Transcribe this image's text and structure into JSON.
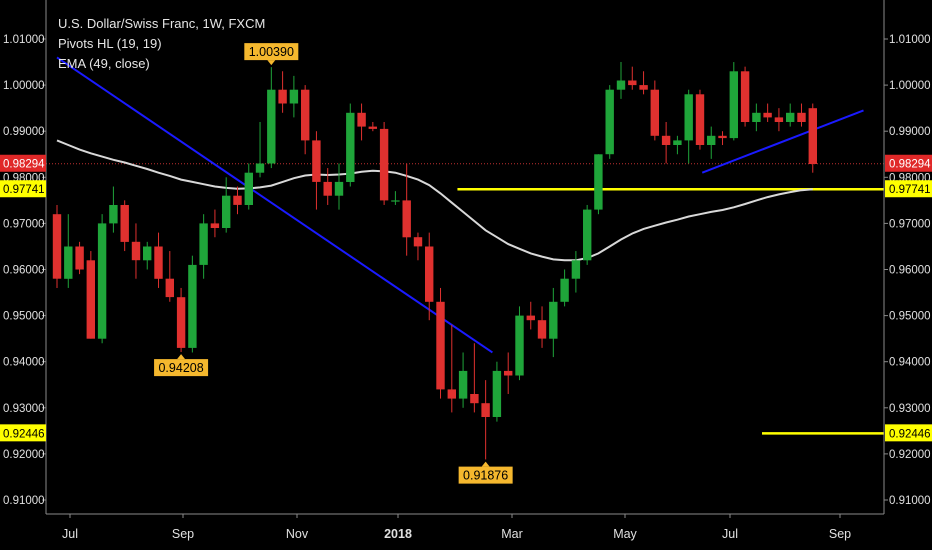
{
  "legend": {
    "title": "U.S. Dollar/Swiss Franc, 1W, FXCM",
    "pivots": "Pivots HL (19, 19)",
    "ema": "EMA (49, close)"
  },
  "chart_data": {
    "type": "candlestick",
    "y_ticks": [
      "0.91000",
      "0.92000",
      "0.93000",
      "0.94000",
      "0.95000",
      "0.96000",
      "0.97000",
      "0.98000",
      "0.99000",
      "1.00000",
      "1.01000"
    ],
    "ylim": [
      0.905,
      1.012
    ],
    "x_labels": [
      "Jul",
      "Sep",
      "Nov",
      "2018",
      "Mar",
      "May",
      "Jul",
      "Sep"
    ],
    "bold_x_label": "2018",
    "candles": [
      {
        "o": 0.972,
        "h": 0.974,
        "l": 0.956,
        "c": 0.958
      },
      {
        "o": 0.958,
        "h": 0.972,
        "l": 0.956,
        "c": 0.965
      },
      {
        "o": 0.965,
        "h": 0.966,
        "l": 0.959,
        "c": 0.96
      },
      {
        "o": 0.962,
        "h": 0.964,
        "l": 0.945,
        "c": 0.945
      },
      {
        "o": 0.945,
        "h": 0.972,
        "l": 0.944,
        "c": 0.97
      },
      {
        "o": 0.97,
        "h": 0.978,
        "l": 0.968,
        "c": 0.974
      },
      {
        "o": 0.974,
        "h": 0.975,
        "l": 0.964,
        "c": 0.966
      },
      {
        "o": 0.966,
        "h": 0.97,
        "l": 0.958,
        "c": 0.962
      },
      {
        "o": 0.962,
        "h": 0.966,
        "l": 0.96,
        "c": 0.965
      },
      {
        "o": 0.965,
        "h": 0.968,
        "l": 0.956,
        "c": 0.958
      },
      {
        "o": 0.958,
        "h": 0.964,
        "l": 0.953,
        "c": 0.954
      },
      {
        "o": 0.954,
        "h": 0.956,
        "l": 0.9421,
        "c": 0.943
      },
      {
        "o": 0.943,
        "h": 0.963,
        "l": 0.942,
        "c": 0.961
      },
      {
        "o": 0.961,
        "h": 0.972,
        "l": 0.958,
        "c": 0.97
      },
      {
        "o": 0.97,
        "h": 0.973,
        "l": 0.967,
        "c": 0.969
      },
      {
        "o": 0.969,
        "h": 0.98,
        "l": 0.968,
        "c": 0.976
      },
      {
        "o": 0.976,
        "h": 0.978,
        "l": 0.972,
        "c": 0.974
      },
      {
        "o": 0.974,
        "h": 0.983,
        "l": 0.973,
        "c": 0.981
      },
      {
        "o": 0.981,
        "h": 0.992,
        "l": 0.98,
        "c": 0.983
      },
      {
        "o": 0.983,
        "h": 1.0039,
        "l": 0.982,
        "c": 0.999
      },
      {
        "o": 0.999,
        "h": 1.003,
        "l": 0.994,
        "c": 0.996
      },
      {
        "o": 0.996,
        "h": 1.002,
        "l": 0.993,
        "c": 0.999
      },
      {
        "o": 0.999,
        "h": 1.0,
        "l": 0.985,
        "c": 0.988
      },
      {
        "o": 0.988,
        "h": 0.99,
        "l": 0.973,
        "c": 0.979
      },
      {
        "o": 0.979,
        "h": 0.982,
        "l": 0.974,
        "c": 0.976
      },
      {
        "o": 0.976,
        "h": 0.983,
        "l": 0.973,
        "c": 0.979
      },
      {
        "o": 0.979,
        "h": 0.996,
        "l": 0.978,
        "c": 0.994
      },
      {
        "o": 0.994,
        "h": 0.996,
        "l": 0.988,
        "c": 0.991
      },
      {
        "o": 0.991,
        "h": 0.992,
        "l": 0.99,
        "c": 0.9905
      },
      {
        "o": 0.9905,
        "h": 0.992,
        "l": 0.974,
        "c": 0.975
      },
      {
        "o": 0.975,
        "h": 0.977,
        "l": 0.974,
        "c": 0.975
      },
      {
        "o": 0.975,
        "h": 0.983,
        "l": 0.963,
        "c": 0.967
      },
      {
        "o": 0.967,
        "h": 0.968,
        "l": 0.962,
        "c": 0.965
      },
      {
        "o": 0.965,
        "h": 0.968,
        "l": 0.949,
        "c": 0.953
      },
      {
        "o": 0.953,
        "h": 0.956,
        "l": 0.932,
        "c": 0.934
      },
      {
        "o": 0.934,
        "h": 0.948,
        "l": 0.929,
        "c": 0.932
      },
      {
        "o": 0.932,
        "h": 0.942,
        "l": 0.93,
        "c": 0.938
      },
      {
        "o": 0.933,
        "h": 0.944,
        "l": 0.929,
        "c": 0.931
      },
      {
        "o": 0.931,
        "h": 0.936,
        "l": 0.9188,
        "c": 0.928
      },
      {
        "o": 0.928,
        "h": 0.94,
        "l": 0.927,
        "c": 0.938
      },
      {
        "o": 0.938,
        "h": 0.942,
        "l": 0.933,
        "c": 0.937
      },
      {
        "o": 0.937,
        "h": 0.952,
        "l": 0.936,
        "c": 0.95
      },
      {
        "o": 0.95,
        "h": 0.953,
        "l": 0.947,
        "c": 0.949
      },
      {
        "o": 0.949,
        "h": 0.952,
        "l": 0.943,
        "c": 0.945
      },
      {
        "o": 0.945,
        "h": 0.956,
        "l": 0.941,
        "c": 0.953
      },
      {
        "o": 0.953,
        "h": 0.96,
        "l": 0.952,
        "c": 0.958
      },
      {
        "o": 0.958,
        "h": 0.964,
        "l": 0.955,
        "c": 0.962
      },
      {
        "o": 0.962,
        "h": 0.974,
        "l": 0.961,
        "c": 0.973
      },
      {
        "o": 0.973,
        "h": 0.985,
        "l": 0.972,
        "c": 0.985
      },
      {
        "o": 0.985,
        "h": 1.0,
        "l": 0.984,
        "c": 0.999
      },
      {
        "o": 0.999,
        "h": 1.005,
        "l": 0.997,
        "c": 1.001
      },
      {
        "o": 1.001,
        "h": 1.004,
        "l": 0.999,
        "c": 1.0
      },
      {
        "o": 1.0,
        "h": 1.003,
        "l": 0.998,
        "c": 0.999
      },
      {
        "o": 0.999,
        "h": 1.001,
        "l": 0.988,
        "c": 0.989
      },
      {
        "o": 0.989,
        "h": 0.992,
        "l": 0.983,
        "c": 0.987
      },
      {
        "o": 0.987,
        "h": 0.989,
        "l": 0.985,
        "c": 0.988
      },
      {
        "o": 0.988,
        "h": 0.999,
        "l": 0.983,
        "c": 0.998
      },
      {
        "o": 0.998,
        "h": 0.999,
        "l": 0.986,
        "c": 0.987
      },
      {
        "o": 0.987,
        "h": 0.991,
        "l": 0.984,
        "c": 0.989
      },
      {
        "o": 0.989,
        "h": 0.99,
        "l": 0.987,
        "c": 0.9885
      },
      {
        "o": 0.9885,
        "h": 1.005,
        "l": 0.988,
        "c": 1.003
      },
      {
        "o": 1.003,
        "h": 1.004,
        "l": 0.991,
        "c": 0.992
      },
      {
        "o": 0.992,
        "h": 0.996,
        "l": 0.99,
        "c": 0.994
      },
      {
        "o": 0.994,
        "h": 0.996,
        "l": 0.992,
        "c": 0.993
      },
      {
        "o": 0.993,
        "h": 0.995,
        "l": 0.99,
        "c": 0.992
      },
      {
        "o": 0.992,
        "h": 0.996,
        "l": 0.991,
        "c": 0.994
      },
      {
        "o": 0.994,
        "h": 0.996,
        "l": 0.991,
        "c": 0.992
      },
      {
        "o": 0.995,
        "h": 0.996,
        "l": 0.981,
        "c": 0.9829
      }
    ],
    "ema": [
      0.988,
      0.987,
      0.986,
      0.9852,
      0.9845,
      0.9838,
      0.9832,
      0.9825,
      0.9818,
      0.981,
      0.9803,
      0.9795,
      0.979,
      0.9785,
      0.978,
      0.9777,
      0.9775,
      0.9776,
      0.9778,
      0.9782,
      0.979,
      0.9798,
      0.9804,
      0.9806,
      0.9805,
      0.9806,
      0.9808,
      0.9812,
      0.9814,
      0.9813,
      0.981,
      0.9803,
      0.9795,
      0.9783,
      0.9765,
      0.9745,
      0.9725,
      0.9705,
      0.9685,
      0.967,
      0.9655,
      0.9645,
      0.9635,
      0.9628,
      0.9622,
      0.962,
      0.962,
      0.9625,
      0.9635,
      0.965,
      0.9665,
      0.9678,
      0.9688,
      0.9695,
      0.9702,
      0.9708,
      0.9715,
      0.972,
      0.9725,
      0.9729,
      0.9735,
      0.9742,
      0.975,
      0.9757,
      0.9763,
      0.9768,
      0.9772,
      0.9774
    ],
    "trend_lines": [
      {
        "from": [
          0,
          1.006
        ],
        "to": [
          38.6,
          0.942
        ],
        "color": "#1a1aff"
      },
      {
        "from": [
          57.2,
          0.981
        ],
        "to": [
          71.5,
          0.9945
        ],
        "color": "#1a1aff"
      }
    ],
    "horizontal_lines": [
      {
        "value": 0.97741,
        "from": 35.5,
        "to": 76,
        "color": "#ffff00"
      },
      {
        "value": 0.92446,
        "from": 62.5,
        "to": 76,
        "color": "#ffff00"
      }
    ],
    "price_line": {
      "value": 0.98294,
      "color": "#c03030"
    },
    "pivot_labels": [
      {
        "text": "1.00390",
        "bar": 19,
        "value": 1.0039,
        "pos": "above"
      },
      {
        "text": "0.94208",
        "bar": 11,
        "value": 0.94208,
        "pos": "below"
      },
      {
        "text": "0.91876",
        "bar": 38,
        "value": 0.91876,
        "pos": "below"
      }
    ],
    "axis_markers": [
      {
        "text": "0.98294",
        "value": 0.98294,
        "bg": "#e02828",
        "fg": "#ffffff"
      },
      {
        "text": "0.97741",
        "value": 0.97741,
        "bg": "#ffff00",
        "fg": "#000000"
      },
      {
        "text": "0.92446",
        "value": 0.92446,
        "bg": "#ffff00",
        "fg": "#000000"
      }
    ],
    "colors": {
      "up": "#1fa53a",
      "down": "#e0312f",
      "ema": "#d8d8d8",
      "pivot_bg": "#f5b82e",
      "axis": "#8a8a8a",
      "tick_text": "#e0e0e0",
      "price_line": "#c03030"
    }
  }
}
